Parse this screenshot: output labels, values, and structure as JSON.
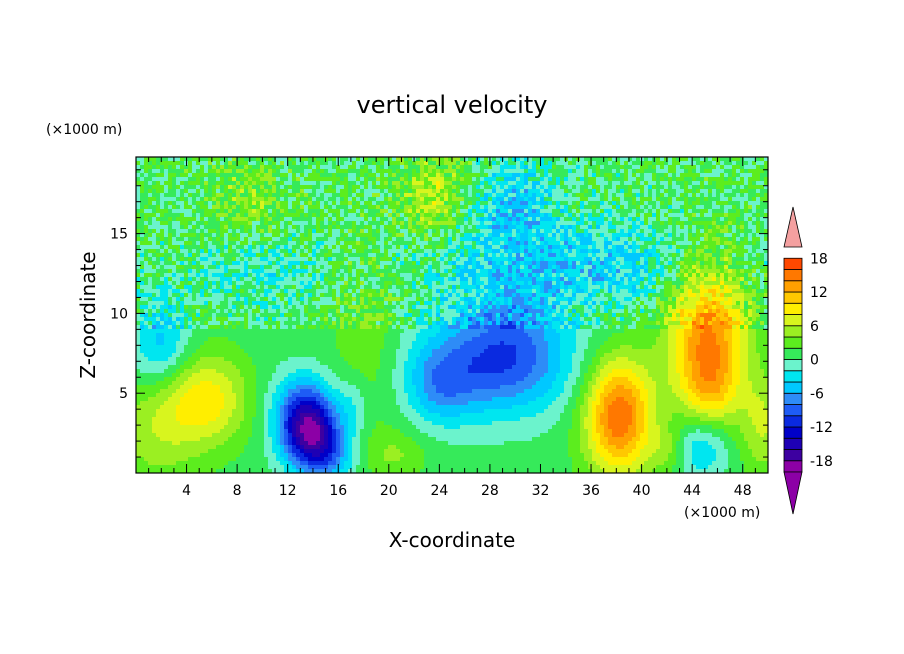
{
  "chart_data": {
    "type": "heatmap",
    "title": "vertical velocity",
    "xlabel": "X-coordinate",
    "ylabel": "Z-coordinate",
    "x_unit": "(×1000 m)",
    "z_unit": "(×1000 m)",
    "xlim": [
      0,
      50
    ],
    "zlim": [
      0,
      19.8
    ],
    "x_ticks": [
      4,
      8,
      12,
      16,
      20,
      24,
      28,
      32,
      36,
      40,
      44,
      48
    ],
    "z_ticks": [
      5,
      10,
      15
    ],
    "colorbar": {
      "tick_labels": [
        18,
        12,
        6,
        0,
        -6,
        -12,
        -18
      ],
      "min": -20,
      "max": 20,
      "interval": 2,
      "extend": "both",
      "colors": [
        "#8c00a6",
        "#3d00a0",
        "#1e00b4",
        "#0000c8",
        "#0a2ae0",
        "#1e5cf5",
        "#2e8cf7",
        "#00c8ff",
        "#00e6f0",
        "#6bf3cc",
        "#36ea5a",
        "#5ced1e",
        "#9bef22",
        "#d8f51e",
        "#ffee00",
        "#ffc800",
        "#ffa000",
        "#ff7800",
        "#ff4800",
        "#e60000",
        "#f4a0a0"
      ]
    },
    "features": [
      {
        "kind": "updraft",
        "x": 5.5,
        "z": 4.6,
        "peak": 9
      },
      {
        "kind": "downdraft",
        "x": 13.8,
        "z": 2.4,
        "peak": -15
      },
      {
        "kind": "downdraft",
        "x": 28,
        "z": 6.8,
        "peak": -12
      },
      {
        "kind": "updraft",
        "x": 38.2,
        "z": 3.6,
        "peak": 15
      },
      {
        "kind": "updraft",
        "x": 45.2,
        "z": 8.6,
        "peak": 14
      },
      {
        "kind": "updraft",
        "x": 23.5,
        "z": 17.5,
        "peak": 5
      }
    ]
  }
}
